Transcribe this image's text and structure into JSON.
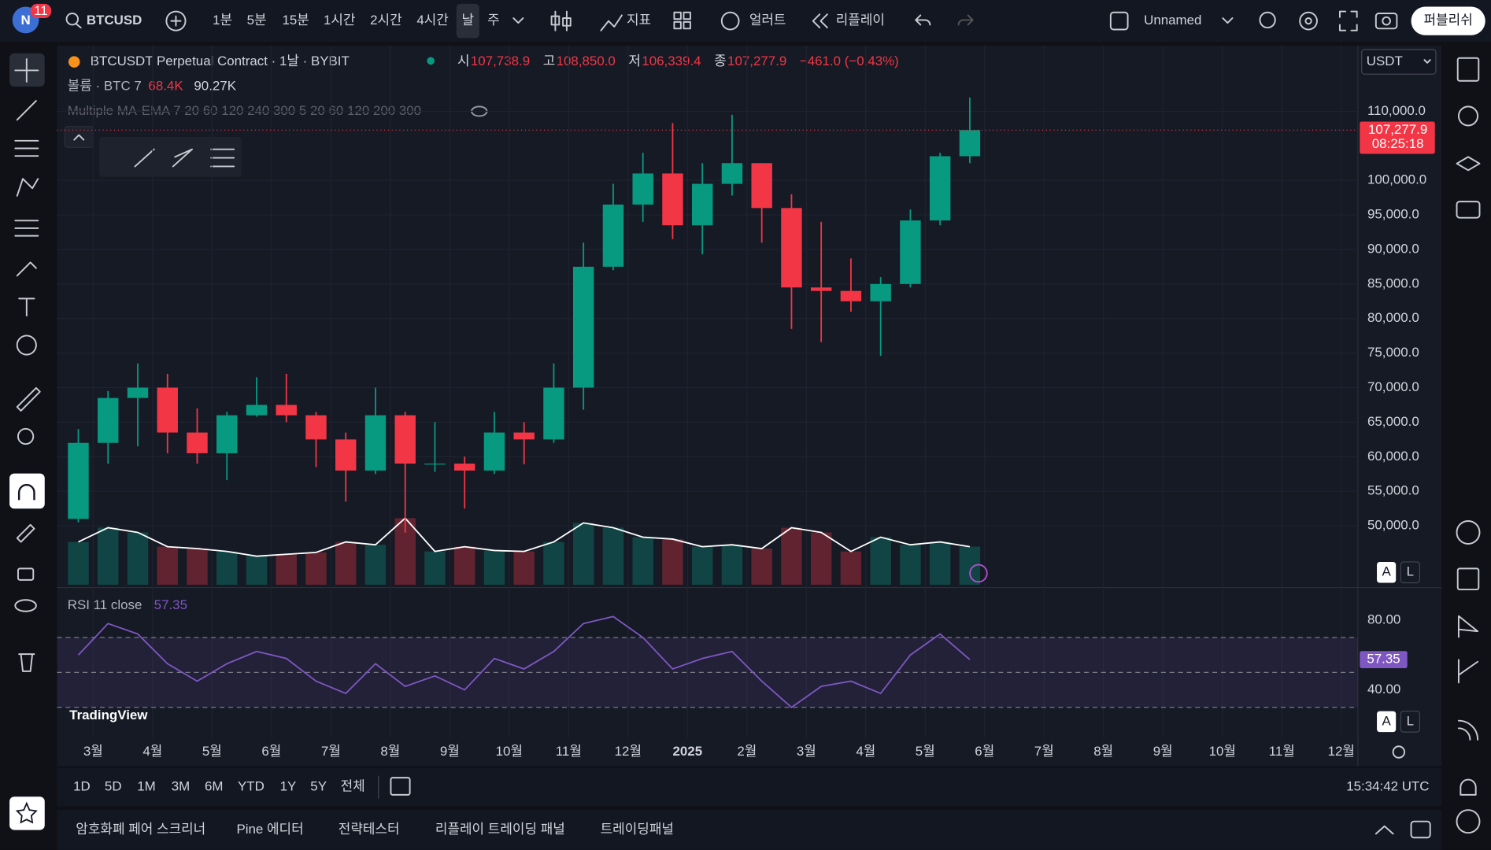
{
  "top_bar": {
    "logo": "N",
    "badge": "11",
    "symbol": "BTCUSD",
    "intervals": [
      "1분",
      "5분",
      "15분",
      "1시간",
      "2시간",
      "4시간",
      "날",
      "주"
    ],
    "active_interval": 6,
    "indicators": "지표",
    "alerts": "얼러트",
    "replay": "리플레이",
    "layout_name": "Unnamed",
    "publish": "퍼블리쉬"
  },
  "legend": {
    "title": "BTCUSDT Perpetual Contract · 1날 · BYBIT",
    "open_label": "시",
    "open": "107,738.9",
    "high_label": "고",
    "high": "108,850.0",
    "low_label": "저",
    "low": "106,339.4",
    "close_label": "종",
    "close": "107,277.9",
    "change": "−461.0 (−0.43%)",
    "volume_label": "볼륨 · BTC 7",
    "volume_value": "68.4K",
    "volume_ma": "90.27K",
    "ma_label": "Multiple MA-EMA 7 20 60 120 240 300 5 20 60 120 200 300",
    "currency": "USDT",
    "watermark": "TradingView",
    "scale_auto": "A",
    "scale_log": "L"
  },
  "chart_data": [
    {
      "type": "candlestick",
      "x": [
        -0.25,
        0.25,
        0.75,
        1.25,
        1.75,
        2.25,
        2.75,
        3.25,
        3.75,
        4.25,
        4.75,
        5.25,
        5.75,
        6.25,
        6.75,
        7.25,
        7.75,
        8.25,
        8.75,
        9.25,
        9.75,
        10.25,
        10.75,
        11.25,
        11.75,
        12.25,
        12.75,
        13.25,
        13.75,
        14.25,
        14.75
      ],
      "open": [
        51000,
        62000,
        68500,
        70000,
        63500,
        60500,
        66000,
        67500,
        66000,
        62500,
        58000,
        66000,
        59000,
        59000,
        58000,
        63500,
        62500,
        70000,
        87500,
        96500,
        101000,
        93500,
        99500,
        102500,
        96000,
        84500,
        84000,
        82500,
        85000,
        94200,
        103500
      ],
      "high": [
        64000,
        69500,
        73500,
        72000,
        67000,
        66500,
        71500,
        72000,
        66500,
        63500,
        70000,
        66500,
        65000,
        60000,
        66500,
        65000,
        73500,
        91000,
        99500,
        104000,
        108300,
        102500,
        109500,
        102500,
        98000,
        94000,
        88700,
        86000,
        95800,
        104000,
        112000
      ],
      "low": [
        50500,
        59000,
        61500,
        60500,
        59000,
        56600,
        65800,
        65000,
        58500,
        53500,
        57500,
        49000,
        57800,
        52500,
        57500,
        58900,
        62000,
        66800,
        87000,
        94000,
        91500,
        89300,
        97800,
        91000,
        78500,
        76600,
        81000,
        74600,
        84500,
        93500,
        102500
      ],
      "close": [
        62000,
        68500,
        70000,
        63500,
        60500,
        66000,
        67500,
        66000,
        62500,
        58000,
        66000,
        59000,
        59000,
        58000,
        63500,
        62500,
        70000,
        87500,
        96500,
        101000,
        93500,
        99500,
        102500,
        96000,
        84500,
        84000,
        82500,
        85000,
        94200,
        103500,
        107277.9
      ],
      "volume": [
        45,
        60,
        55,
        40,
        38,
        35,
        30,
        32,
        34,
        45,
        42,
        70,
        35,
        40,
        36,
        35,
        45,
        65,
        60,
        50,
        48,
        40,
        42,
        38,
        60,
        55,
        35,
        50,
        42,
        45,
        40
      ],
      "up_color": "#089981",
      "down_color": "#f23645",
      "volume_line_color": "#ffffff",
      "xlim": [
        -0.608,
        21.28
      ],
      "xticks": [
        {
          "value": 0,
          "label": "3월"
        },
        {
          "value": 1,
          "label": "4월"
        },
        {
          "value": 2,
          "label": "5월"
        },
        {
          "value": 3,
          "label": "6월"
        },
        {
          "value": 4,
          "label": "7월"
        },
        {
          "value": 5,
          "label": "8월"
        },
        {
          "value": 6,
          "label": "9월"
        },
        {
          "value": 7,
          "label": "10월"
        },
        {
          "value": 8,
          "label": "11월"
        },
        {
          "value": 9,
          "label": "12월"
        },
        {
          "value": 10,
          "label": "2025"
        },
        {
          "value": 11,
          "label": "2월"
        },
        {
          "value": 12,
          "label": "3월"
        },
        {
          "value": 13,
          "label": "4월"
        },
        {
          "value": 14,
          "label": "5월"
        },
        {
          "value": 15,
          "label": "6월"
        },
        {
          "value": 16,
          "label": "7월"
        },
        {
          "value": 17,
          "label": "8월"
        },
        {
          "value": 18,
          "label": "9월"
        },
        {
          "value": 19,
          "label": "10월"
        },
        {
          "value": 20,
          "label": "11월"
        },
        {
          "value": 21,
          "label": "12월"
        }
      ],
      "ylim": [
        41470,
        119500
      ],
      "yticks": [
        {
          "value": 50000,
          "label": "50,000.0"
        },
        {
          "value": 55000,
          "label": "55,000.0"
        },
        {
          "value": 60000,
          "label": "60,000.0"
        },
        {
          "value": 65000,
          "label": "65,000.0"
        },
        {
          "value": 70000,
          "label": "70,000.0"
        },
        {
          "value": 75000,
          "label": "75,000.0"
        },
        {
          "value": 80000,
          "label": "80,000.0"
        },
        {
          "value": 85000,
          "label": "85,000.0"
        },
        {
          "value": 90000,
          "label": "90,000.0"
        },
        {
          "value": 95000,
          "label": "95,000.0"
        },
        {
          "value": 100000,
          "label": "100,000.0"
        },
        {
          "value": 110000,
          "label": "110,000.0"
        }
      ],
      "price_line": {
        "value": 107277.9,
        "label": "107,277.9"
      },
      "countdown": "08:25:18",
      "grid": true
    },
    {
      "type": "line",
      "title": "RSI 11 close",
      "color": "#7e57c2",
      "x": [
        -0.25,
        0.25,
        0.75,
        1.25,
        1.75,
        2.25,
        2.75,
        3.25,
        3.75,
        4.25,
        4.75,
        5.25,
        5.75,
        6.25,
        6.75,
        7.25,
        7.75,
        8.25,
        8.75,
        9.25,
        9.75,
        10.25,
        10.75,
        11.25,
        11.75,
        12.25,
        12.75,
        13.25,
        13.75,
        14.25,
        14.75
      ],
      "values": [
        60,
        78,
        72,
        55,
        45,
        55,
        62,
        58,
        45,
        38,
        55,
        42,
        48,
        40,
        58,
        52,
        62,
        78,
        82,
        70,
        52,
        58,
        62,
        45,
        30,
        42,
        45,
        38,
        60,
        72,
        57.35
      ],
      "bands": [
        30,
        50,
        70
      ],
      "xlim": [
        -0.608,
        21.28
      ],
      "ylim": [
        12.6,
        97.5
      ],
      "yticks": [
        {
          "value": 40,
          "label": "40.00"
        },
        {
          "value": 80,
          "label": "80.00"
        }
      ]
    }
  ],
  "bottom_bar": {
    "ranges": [
      "1D",
      "5D",
      "1M",
      "3M",
      "6M",
      "YTD",
      "1Y",
      "5Y",
      "전체"
    ],
    "clock": "15:34:42 UTC"
  },
  "panels": [
    "암호화폐 페어 스크리너",
    "Pine 에디터",
    "전략테스터",
    "리플레이 트레이딩 패널",
    "트레이딩패널"
  ]
}
